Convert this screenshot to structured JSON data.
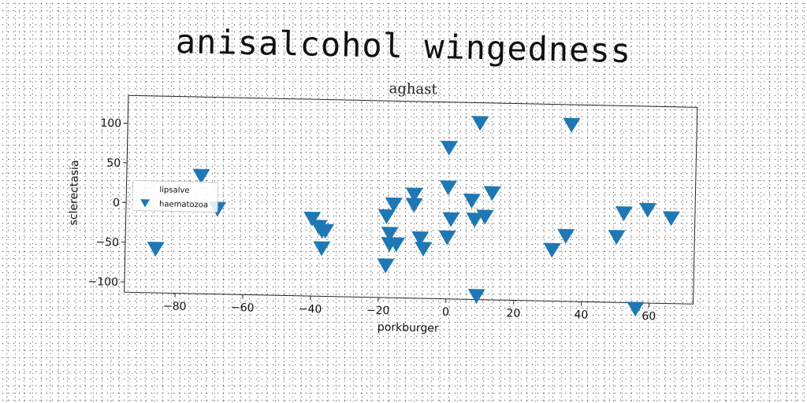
{
  "page_title": "anisalcohol wingedness",
  "chart_data": {
    "type": "scatter",
    "title": "aghast",
    "xlabel": "porkburger",
    "ylabel": "sclerectasia",
    "xlim": [
      -95,
      73
    ],
    "ylim": [
      -113,
      135
    ],
    "xticks": [
      -80,
      -60,
      -40,
      -20,
      0,
      20,
      40,
      60
    ],
    "yticks": [
      -100,
      -50,
      0,
      50,
      100
    ],
    "grid": false,
    "legend_position": "left",
    "series": [
      {
        "name": "lipsalve",
        "color": "#1f77b4",
        "marker": "none",
        "x": [],
        "y": []
      },
      {
        "name": "haematozoa",
        "color": "#1f77b4",
        "marker": "triangle-down",
        "x": [
          -86,
          -73,
          -68,
          -40,
          -38,
          -37,
          -36,
          -37,
          -18,
          -17,
          -17,
          -16,
          -15,
          -18,
          -10,
          -10,
          -8,
          -7,
          0,
          0,
          1,
          0,
          7,
          8,
          9,
          11,
          13,
          9,
          31,
          35,
          36,
          50,
          52,
          56,
          59,
          66
        ],
        "y": [
          -57,
          36,
          -5,
          -15,
          -25,
          -30,
          -30,
          -52,
          -10,
          -32,
          -45,
          5,
          -45,
          -72,
          18,
          5,
          -37,
          -50,
          78,
          28,
          -12,
          -35,
          12,
          -12,
          -108,
          -8,
          22,
          110,
          -48,
          -30,
          110,
          -30,
          0,
          -120,
          5,
          -5
        ]
      }
    ]
  }
}
